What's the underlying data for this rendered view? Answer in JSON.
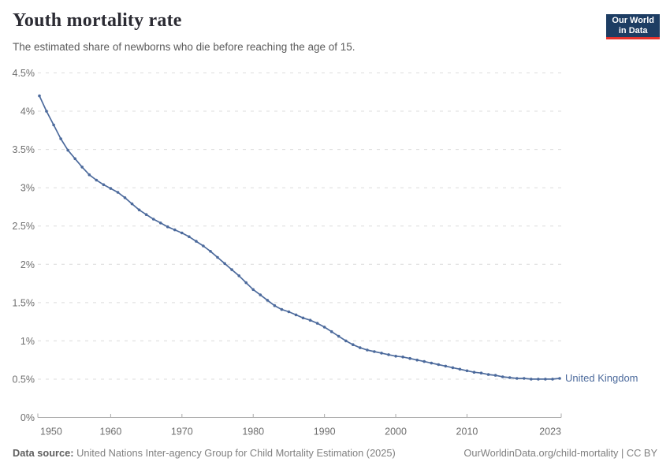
{
  "header": {
    "title": "Youth mortality rate",
    "subtitle": "The estimated share of newborns who die before reaching the age of 15.",
    "logo": {
      "line1": "Our World",
      "line2": "in Data",
      "bg_color": "#1d3d63",
      "accent_color": "#e5332d"
    }
  },
  "chart_data": {
    "type": "line",
    "title": "Youth mortality rate",
    "xlabel": "",
    "ylabel": "",
    "xlim": [
      1950,
      2023
    ],
    "ylim": [
      0,
      4.5
    ],
    "grid": "horizontal-dashed",
    "legend_position": "end-of-line",
    "x_ticks": [
      1950,
      1960,
      1970,
      1980,
      1990,
      2000,
      2010,
      2023
    ],
    "y_ticks": [
      {
        "value": 0,
        "label": "0%"
      },
      {
        "value": 0.5,
        "label": "0.5%"
      },
      {
        "value": 1,
        "label": "1%"
      },
      {
        "value": 1.5,
        "label": "1.5%"
      },
      {
        "value": 2,
        "label": "2%"
      },
      {
        "value": 2.5,
        "label": "2.5%"
      },
      {
        "value": 3,
        "label": "3%"
      },
      {
        "value": 3.5,
        "label": "3.5%"
      },
      {
        "value": 4,
        "label": "4%"
      },
      {
        "value": 4.5,
        "label": "4.5%"
      }
    ],
    "series": [
      {
        "name": "United Kingdom",
        "color": "#4C6A9C",
        "unit": "%",
        "years": [
          1950,
          1951,
          1952,
          1953,
          1954,
          1955,
          1956,
          1957,
          1958,
          1959,
          1960,
          1961,
          1962,
          1963,
          1964,
          1965,
          1966,
          1967,
          1968,
          1969,
          1970,
          1971,
          1972,
          1973,
          1974,
          1975,
          1976,
          1977,
          1978,
          1979,
          1980,
          1981,
          1982,
          1983,
          1984,
          1985,
          1986,
          1987,
          1988,
          1989,
          1990,
          1991,
          1992,
          1993,
          1994,
          1995,
          1996,
          1997,
          1998,
          1999,
          2000,
          2001,
          2002,
          2003,
          2004,
          2005,
          2006,
          2007,
          2008,
          2009,
          2010,
          2011,
          2012,
          2013,
          2014,
          2015,
          2016,
          2017,
          2018,
          2019,
          2020,
          2021,
          2022,
          2023
        ],
        "values": [
          4.2,
          4.0,
          3.82,
          3.64,
          3.49,
          3.38,
          3.27,
          3.17,
          3.1,
          3.04,
          2.99,
          2.94,
          2.87,
          2.79,
          2.71,
          2.65,
          2.59,
          2.54,
          2.49,
          2.45,
          2.41,
          2.36,
          2.3,
          2.24,
          2.17,
          2.09,
          2.01,
          1.93,
          1.85,
          1.76,
          1.67,
          1.6,
          1.53,
          1.46,
          1.41,
          1.38,
          1.34,
          1.3,
          1.27,
          1.23,
          1.18,
          1.12,
          1.06,
          1.0,
          0.95,
          0.91,
          0.88,
          0.86,
          0.84,
          0.82,
          0.8,
          0.79,
          0.77,
          0.75,
          0.73,
          0.71,
          0.69,
          0.67,
          0.65,
          0.63,
          0.61,
          0.59,
          0.58,
          0.56,
          0.55,
          0.53,
          0.52,
          0.51,
          0.51,
          0.5,
          0.5,
          0.5,
          0.5,
          0.51
        ]
      }
    ]
  },
  "footer": {
    "source_label": "Data source:",
    "source_text": "United Nations Inter-agency Group for Child Mortality Estimation (2025)",
    "link_text": "OurWorldinData.org/child-mortality | CC BY"
  }
}
